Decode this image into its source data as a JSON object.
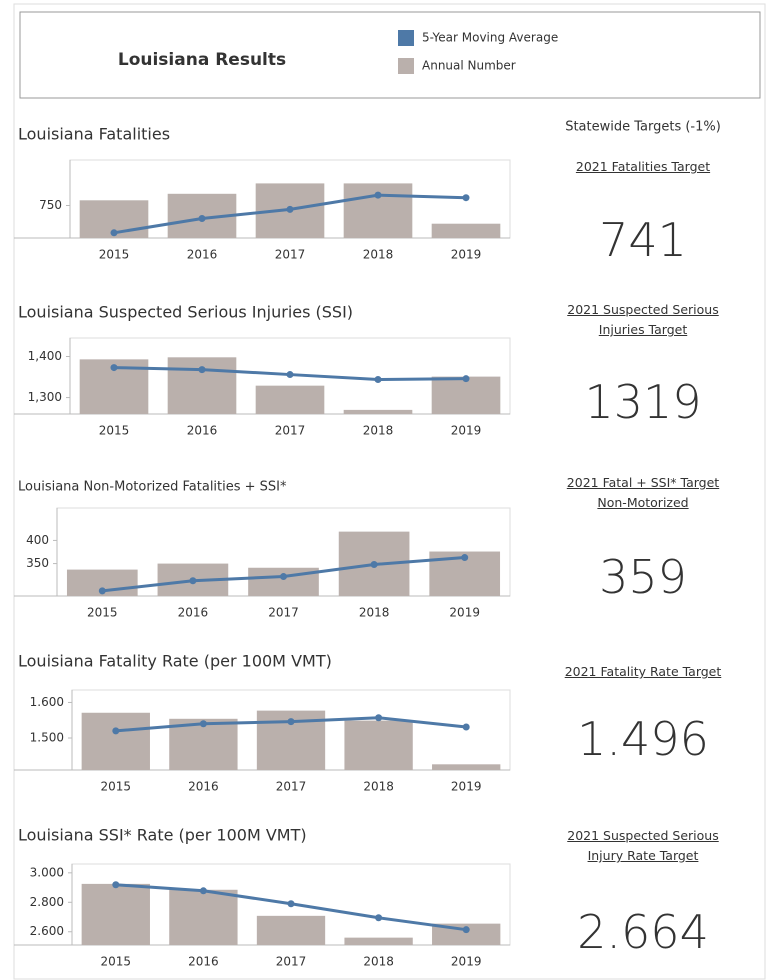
{
  "header": {
    "title": "Louisiana Results"
  },
  "targets_heading": "Statewide Targets (-1%)",
  "targets": [
    {
      "label": "2021 Fatalities Target",
      "value": 741
    },
    {
      "label": "2021 Suspected Serious Injuries Target",
      "value": 1319
    },
    {
      "label": "2021 Fatal + SSI* Target Non-Motorized",
      "value": 359
    },
    {
      "label": "2021 Fatality Rate Target",
      "value": 1.496
    },
    {
      "label": "2021 Suspected Serious Injury Rate Target",
      "value": 2.664
    }
  ],
  "chart_data": [
    {
      "type": "bar",
      "title": "Louisiana Fatalities",
      "categories": [
        "2015",
        "2016",
        "2017",
        "2018",
        "2019"
      ],
      "series": [
        {
          "name": "Annual Number",
          "color": "#bab0ac",
          "values": [
            754,
            759,
            767,
            767,
            736
          ]
        },
        {
          "name": "5-Year Moving Average",
          "type": "line",
          "color": "#4e79a7",
          "values": [
            729,
            740,
            747,
            758,
            756
          ]
        }
      ],
      "ylim": [
        725,
        785
      ],
      "yticks": [
        750
      ]
    },
    {
      "type": "bar",
      "title": "Louisiana Suspected Serious Injuries (SSI)",
      "categories": [
        "2015",
        "2016",
        "2017",
        "2018",
        "2019"
      ],
      "series": [
        {
          "name": "Annual Number",
          "color": "#bab0ac",
          "values": [
            1393,
            1398,
            1329,
            1270,
            1351
          ]
        },
        {
          "name": "5-Year Moving Average",
          "type": "line",
          "color": "#4e79a7",
          "values": [
            1373,
            1368,
            1356,
            1344,
            1346
          ]
        }
      ],
      "ylim": [
        1260,
        1445
      ],
      "yticks": [
        {
          "value": 1300,
          "label": "1,300"
        },
        {
          "value": 1400,
          "label": "1,400"
        }
      ]
    },
    {
      "type": "bar",
      "title": "Louisiana Non-Motorized Fatalities + SSI*",
      "categories": [
        "2015",
        "2016",
        "2017",
        "2018",
        "2019"
      ],
      "series": [
        {
          "name": "Annual Number",
          "color": "#bab0ac",
          "values": [
            337,
            350,
            341,
            419,
            376
          ]
        },
        {
          "name": "5-Year Moving Average",
          "type": "line",
          "color": "#4e79a7",
          "values": [
            291,
            313,
            322,
            348,
            363
          ]
        }
      ],
      "ylim": [
        280,
        470
      ],
      "yticks": [
        350,
        400
      ]
    },
    {
      "type": "bar",
      "title": "Louisiana Fatality Rate (per 100M VMT)",
      "categories": [
        "2015",
        "2016",
        "2017",
        "2018",
        "2019"
      ],
      "series": [
        {
          "name": "Annual Number",
          "color": "#bab0ac",
          "values": [
            1.571,
            1.554,
            1.577,
            1.549,
            1.426
          ]
        },
        {
          "name": "5-Year Moving Average",
          "type": "line",
          "color": "#4e79a7",
          "values": [
            1.52,
            1.54,
            1.546,
            1.557,
            1.531
          ]
        }
      ],
      "ylim": [
        1.41,
        1.635
      ],
      "yticks": [
        {
          "value": 1.5,
          "label": "1.500"
        },
        {
          "value": 1.6,
          "label": "1.600"
        }
      ]
    },
    {
      "type": "bar",
      "title": "Louisiana SSI* Rate (per 100M VMT)",
      "categories": [
        "2015",
        "2016",
        "2017",
        "2018",
        "2019"
      ],
      "series": [
        {
          "name": "Annual Number",
          "color": "#bab0ac",
          "values": [
            2.925,
            2.885,
            2.708,
            2.56,
            2.655
          ]
        },
        {
          "name": "5-Year Moving Average",
          "type": "line",
          "color": "#4e79a7",
          "values": [
            2.919,
            2.878,
            2.79,
            2.695,
            2.614
          ]
        }
      ],
      "ylim": [
        2.51,
        3.06
      ],
      "yticks": [
        {
          "value": 2.6,
          "label": "2.600"
        },
        {
          "value": 2.8,
          "label": "2.800"
        },
        {
          "value": 3,
          "label": "3.000"
        }
      ]
    }
  ]
}
